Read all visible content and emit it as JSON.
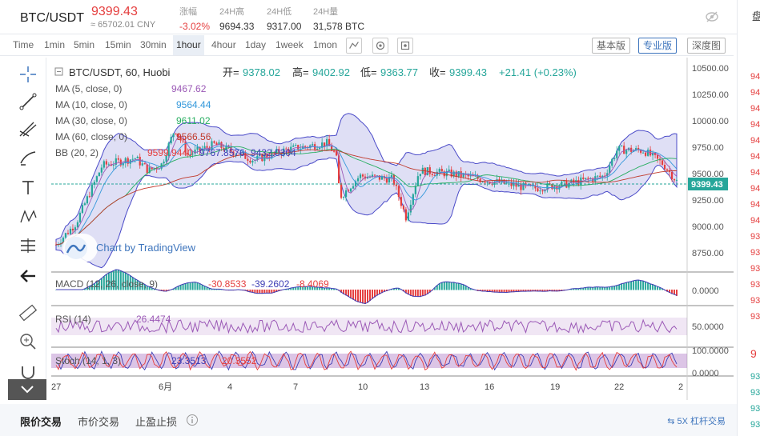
{
  "header": {
    "pair": "BTC/USDT",
    "price": "9399.43",
    "cny": "≈ 65702.01 CNY",
    "stats": [
      {
        "label": "涨幅",
        "value": "-3.02%",
        "red": true
      },
      {
        "label": "24H高",
        "value": "9694.33",
        "red": false
      },
      {
        "label": "24H低",
        "value": "9317.00",
        "red": false
      },
      {
        "label": "24H量",
        "value": "31,578 BTC",
        "red": false
      }
    ]
  },
  "toolbar": {
    "intervals": [
      "Time",
      "1min",
      "5min",
      "15min",
      "30min",
      "1hour",
      "4hour",
      "1day",
      "1week",
      "1mon"
    ],
    "active_interval": "1hour",
    "modes": [
      "基本版",
      "专业版",
      "深度图"
    ],
    "active_mode": "专业版"
  },
  "chart": {
    "title": "BTC/USDT, 60, Huobi",
    "ohlc": {
      "open_label": "开=",
      "open": "9378.02",
      "high_label": "高=",
      "high": "9402.92",
      "low_label": "低=",
      "low": "9363.77",
      "close_label": "收=",
      "close": "9399.43",
      "change": "+21.41 (+0.23%)"
    },
    "indicators": [
      {
        "label": "MA (5, close, 0)",
        "value": "9467.62",
        "color": "#9b59b6"
      },
      {
        "label": "MA (10, close, 0)",
        "value": "9564.44",
        "color": "#3498db"
      },
      {
        "label": "MA (30, close, 0)",
        "value": "9611.02",
        "color": "#27ae60"
      },
      {
        "label": "MA (60, close, 0)",
        "value": "9566.56",
        "color": "#c0392b"
      }
    ],
    "bb": {
      "label": "BB (20, 2)",
      "v1": "9599.9440",
      "v2": "9767.8576",
      "v3": "9432.0304"
    },
    "watermark": "Chart by TradingView",
    "current_price_tag": "9399.43",
    "price_axis": [
      "10500.00",
      "10250.00",
      "10000.00",
      "9750.00",
      "9500.00",
      "9250.00",
      "9000.00",
      "8750.00"
    ],
    "macd": {
      "label": "MACD (12, 26, close, 9)",
      "v1": "-30.8533",
      "v2": "-39.2602",
      "v3": "-8.4069",
      "axis": "0.0000"
    },
    "rsi": {
      "label": "RSI (14)",
      "value": "26.4474",
      "axis": "50.0000"
    },
    "stoch": {
      "label": "Stoch (14, 1, 3)",
      "v1": "23.3513",
      "v2": "20.3552",
      "axis_top": "100.0000",
      "axis_bottom": "0.0000"
    },
    "date_axis": [
      "27",
      "6月",
      "4",
      "7",
      "10",
      "13",
      "16",
      "19",
      "22",
      "2"
    ]
  },
  "bottom": {
    "tabs": [
      "限价交易",
      "市价交易",
      "止盈止损"
    ],
    "lever": "5X 杠杆交易"
  },
  "right_panel": {
    "title": "盘",
    "numbers": [
      "94",
      "94",
      "94",
      "94",
      "94",
      "94",
      "94",
      "94",
      "94",
      "94",
      "93",
      "93",
      "93",
      "93",
      "93",
      "93"
    ],
    "bottom_numbers": [
      "93",
      "93",
      "93",
      "93"
    ],
    "highlight": "9"
  },
  "colors": {
    "up": "#26a69a",
    "down": "#e53e3e",
    "accent": "#3e75bd"
  }
}
